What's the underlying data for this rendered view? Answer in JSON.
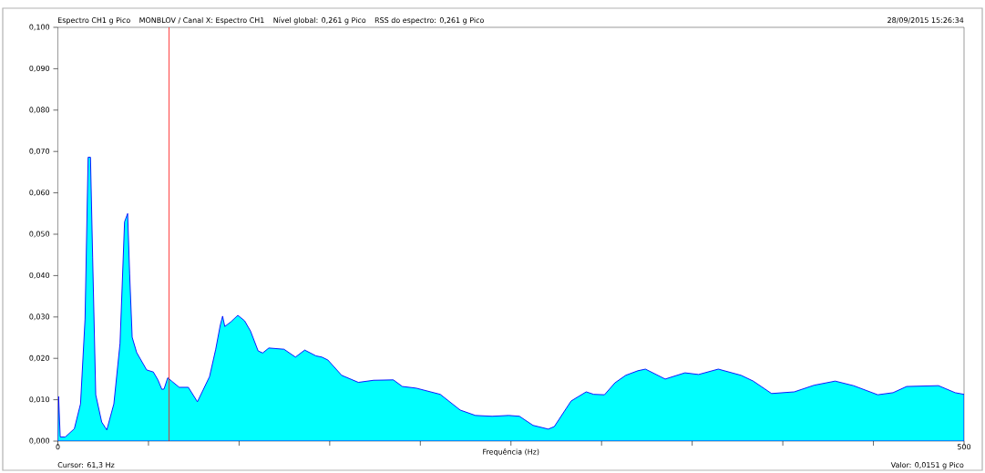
{
  "chart_data": {
    "type": "area",
    "title": "Espectro CH1 g Pico",
    "xlabel": "Frequência (Hz)",
    "annotations": [
      "MONBLOV / Canal X: Espectro CH1",
      "Nível global: 0,261 g Pico",
      "RSS do espectro: 0,261 g Pico",
      "28/09/2015 15:26:34",
      "Cursor: 61,3 Hz",
      "Valor: 0,0151 g Pico"
    ],
    "x": [
      0,
      0.4,
      1.3,
      4.1,
      9.1,
      12.5,
      15,
      16.7,
      18,
      19.2,
      20.9,
      24.2,
      27,
      30.9,
      34.3,
      36.8,
      38.5,
      39.6,
      41,
      43.5,
      49,
      52.7,
      55.2,
      57.4,
      58.6,
      60.6,
      62.8,
      67,
      72,
      77,
      83.7,
      87.1,
      89.6,
      90.9,
      92.1,
      95.4,
      99.3,
      103,
      106.3,
      110.5,
      113,
      116.4,
      124.8,
      131.1,
      136.2,
      142.4,
      145.7,
      149,
      156.6,
      165.8,
      174.2,
      185.1,
      190.1,
      197.7,
      211,
      222,
      230.4,
      239.6,
      248.8,
      254.7,
      262.2,
      270.6,
      273.9,
      283.2,
      291.5,
      295.7,
      301.6,
      307.4,
      313.3,
      320,
      324.2,
      335.1,
      346,
      353.5,
      364.4,
      377,
      383.7,
      393.8,
      406.3,
      417.2,
      428.9,
      439,
      452.4,
      460.8,
      468.3,
      485.9,
      495.1,
      500
    ],
    "series": [
      {
        "color": "#00ffff",
        "values": [
          0.001,
          0.0108,
          0.001,
          0.001,
          0.003,
          0.009,
          0.0295,
          0.0686,
          0.0686,
          0.0443,
          0.0112,
          0.0046,
          0.0027,
          0.009,
          0.0236,
          0.053,
          0.055,
          0.0405,
          0.0251,
          0.0214,
          0.0172,
          0.0167,
          0.0148,
          0.0125,
          0.0126,
          0.0153,
          0.0145,
          0.013,
          0.013,
          0.0095,
          0.0156,
          0.0222,
          0.028,
          0.0302,
          0.0277,
          0.0288,
          0.0304,
          0.0291,
          0.0266,
          0.0218,
          0.0213,
          0.0225,
          0.0222,
          0.0203,
          0.022,
          0.0206,
          0.0203,
          0.0196,
          0.0159,
          0.0142,
          0.0147,
          0.0148,
          0.0132,
          0.0128,
          0.0113,
          0.0075,
          0.0062,
          0.006,
          0.0062,
          0.006,
          0.0038,
          0.0029,
          0.0035,
          0.0097,
          0.0119,
          0.0113,
          0.0112,
          0.0141,
          0.0159,
          0.017,
          0.0174,
          0.015,
          0.0165,
          0.0161,
          0.0174,
          0.0159,
          0.0145,
          0.0115,
          0.0119,
          0.0135,
          0.0145,
          0.0134,
          0.0112,
          0.0117,
          0.0132,
          0.0134,
          0.0117,
          0.0113
        ]
      }
    ],
    "xlim": [
      0,
      500
    ],
    "ylim": [
      0,
      0.1
    ],
    "xticks": [
      0,
      {
        "value": 50,
        "label": null
      },
      {
        "value": 100,
        "label": null
      },
      {
        "value": 150,
        "label": null
      },
      {
        "value": 200,
        "label": null
      },
      {
        "value": 250,
        "label": null
      },
      {
        "value": 300,
        "label": null
      },
      {
        "value": 350,
        "label": null
      },
      {
        "value": 400,
        "label": null
      },
      {
        "value": 450,
        "label": null
      },
      500
    ],
    "yticks": [
      {
        "value": 0,
        "label": "0,000"
      },
      {
        "value": 0.01,
        "label": "0,010"
      },
      {
        "value": 0.02,
        "label": "0,020"
      },
      {
        "value": 0.03,
        "label": "0,030"
      },
      {
        "value": 0.04,
        "label": "0,040"
      },
      {
        "value": 0.05,
        "label": "0,050"
      },
      {
        "value": 0.06,
        "label": "0,060"
      },
      {
        "value": 0.07,
        "label": "0,070"
      },
      {
        "value": 0.08,
        "label": "0,080"
      },
      {
        "value": 0.09,
        "label": "0,090"
      },
      {
        "value": 0.1,
        "label": "0,100"
      }
    ],
    "ref_lines": [
      {
        "axis": "x",
        "value": 61.3,
        "color": "#ff0000"
      }
    ],
    "grid": false,
    "marker": "none",
    "line_style": "solid"
  }
}
